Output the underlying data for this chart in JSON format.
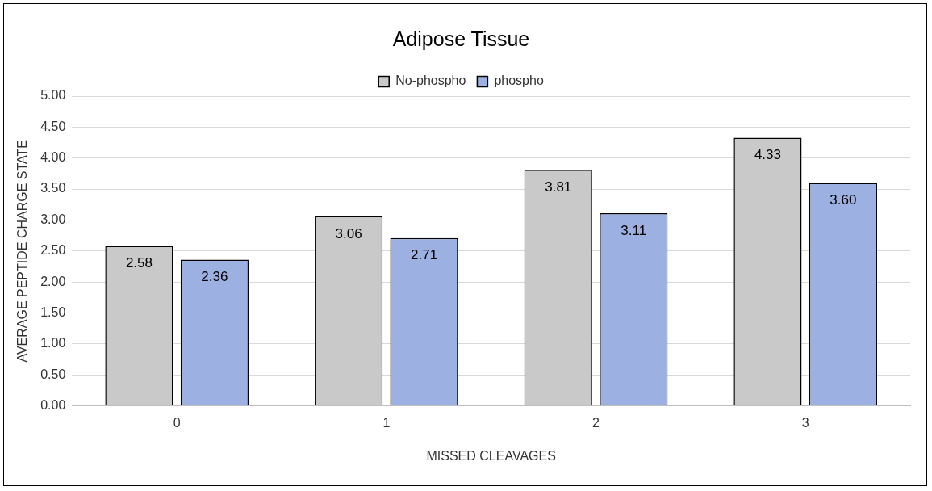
{
  "chart_data": {
    "type": "bar",
    "title": "Adipose Tissue",
    "xlabel": "MISSED CLEAVAGES",
    "ylabel": "AVERAGE PEPTIDE CHARGE STATE",
    "categories": [
      "0",
      "1",
      "2",
      "3"
    ],
    "series": [
      {
        "name": "No-phospho",
        "color": "#c9c9c9",
        "values": [
          2.58,
          3.06,
          3.81,
          4.33
        ],
        "value_labels": [
          "2.58",
          "3.06",
          "3.81",
          "4.33"
        ]
      },
      {
        "name": "phospho",
        "color": "#9cb0e2",
        "values": [
          2.36,
          2.71,
          3.11,
          3.6
        ],
        "value_labels": [
          "2.36",
          "2.71",
          "3.11",
          "3.60"
        ]
      }
    ],
    "ylim": [
      0,
      5
    ],
    "yticks": [
      {
        "value": 0,
        "label": "0.00"
      },
      {
        "value": 0.5,
        "label": "0.50"
      },
      {
        "value": 1,
        "label": "1.00"
      },
      {
        "value": 1.5,
        "label": "1.50"
      },
      {
        "value": 2,
        "label": "2.00"
      },
      {
        "value": 2.5,
        "label": "2.50"
      },
      {
        "value": 3,
        "label": "3.00"
      },
      {
        "value": 3.5,
        "label": "3.50"
      },
      {
        "value": 4,
        "label": "4.00"
      },
      {
        "value": 4.5,
        "label": "4.50"
      },
      {
        "value": 5,
        "label": "5.00"
      }
    ],
    "grid": "y",
    "legend": "top"
  }
}
